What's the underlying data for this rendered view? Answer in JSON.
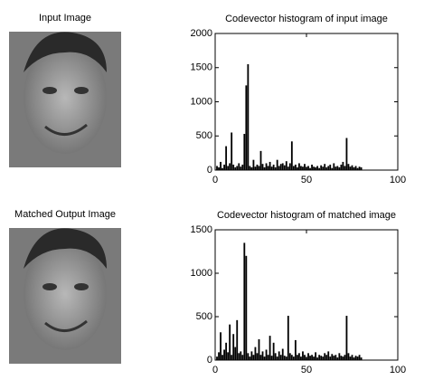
{
  "images": [
    {
      "title": "Input Image"
    },
    {
      "title": "Matched Output Image"
    }
  ],
  "chart_data": [
    {
      "type": "bar",
      "title": "Codevector histogram of input image",
      "color": "#000000",
      "x": [
        1,
        2,
        3,
        4,
        5,
        6,
        7,
        8,
        9,
        10,
        11,
        12,
        13,
        14,
        15,
        16,
        17,
        18,
        19,
        20,
        21,
        22,
        23,
        24,
        25,
        26,
        27,
        28,
        29,
        30,
        31,
        32,
        33,
        34,
        35,
        36,
        37,
        38,
        39,
        40,
        41,
        42,
        43,
        44,
        45,
        46,
        47,
        48,
        49,
        50,
        51,
        52,
        53,
        54,
        55,
        56,
        57,
        58,
        59,
        60,
        61,
        62,
        63,
        64,
        65,
        66,
        67,
        68,
        69,
        70,
        71,
        72,
        73,
        74,
        75,
        76,
        77,
        78,
        79,
        80
      ],
      "values": [
        60,
        40,
        120,
        30,
        80,
        350,
        60,
        100,
        550,
        80,
        40,
        60,
        100,
        50,
        80,
        530,
        1240,
        1550,
        60,
        40,
        150,
        50,
        80,
        60,
        280,
        90,
        40,
        100,
        60,
        120,
        50,
        80,
        40,
        150,
        60,
        90,
        100,
        70,
        130,
        50,
        100,
        420,
        60,
        80,
        40,
        100,
        60,
        50,
        90,
        40,
        60,
        30,
        80,
        50,
        40,
        60,
        30,
        70,
        50,
        90,
        40,
        60,
        80,
        30,
        100,
        50,
        60,
        40,
        80,
        120,
        60,
        470,
        90,
        50,
        70,
        40,
        60,
        30,
        50,
        40
      ],
      "xlim": [
        0,
        100
      ],
      "xticks": [
        0,
        50,
        100
      ],
      "ylim": [
        0,
        2000
      ],
      "yticks": [
        0,
        500,
        1000,
        1500,
        2000
      ]
    },
    {
      "type": "bar",
      "title": "Codevector histogram of matched image",
      "color": "#000000",
      "x": [
        1,
        2,
        3,
        4,
        5,
        6,
        7,
        8,
        9,
        10,
        11,
        12,
        13,
        14,
        15,
        16,
        17,
        18,
        19,
        20,
        21,
        22,
        23,
        24,
        25,
        26,
        27,
        28,
        29,
        30,
        31,
        32,
        33,
        34,
        35,
        36,
        37,
        38,
        39,
        40,
        41,
        42,
        43,
        44,
        45,
        46,
        47,
        48,
        49,
        50,
        51,
        52,
        53,
        54,
        55,
        56,
        57,
        58,
        59,
        60,
        61,
        62,
        63,
        64,
        65,
        66,
        67,
        68,
        69,
        70,
        71,
        72,
        73,
        74,
        75,
        76,
        77,
        78,
        79,
        80
      ],
      "values": [
        40,
        90,
        320,
        60,
        120,
        200,
        90,
        410,
        60,
        300,
        150,
        460,
        80,
        100,
        60,
        1350,
        1200,
        80,
        40,
        100,
        60,
        150,
        80,
        240,
        60,
        100,
        40,
        120,
        60,
        280,
        50,
        200,
        80,
        40,
        100,
        60,
        130,
        50,
        40,
        510,
        80,
        60,
        40,
        230,
        60,
        80,
        40,
        100,
        60,
        30,
        80,
        50,
        60,
        40,
        90,
        30,
        60,
        50,
        40,
        80,
        60,
        100,
        40,
        70,
        50,
        60,
        30,
        80,
        50,
        40,
        60,
        510,
        80,
        40,
        60,
        30,
        50,
        40,
        60,
        30
      ],
      "xlim": [
        0,
        100
      ],
      "xticks": [
        0,
        50,
        100
      ],
      "ylim": [
        0,
        1500
      ],
      "yticks": [
        0,
        500,
        1000,
        1500
      ]
    }
  ]
}
